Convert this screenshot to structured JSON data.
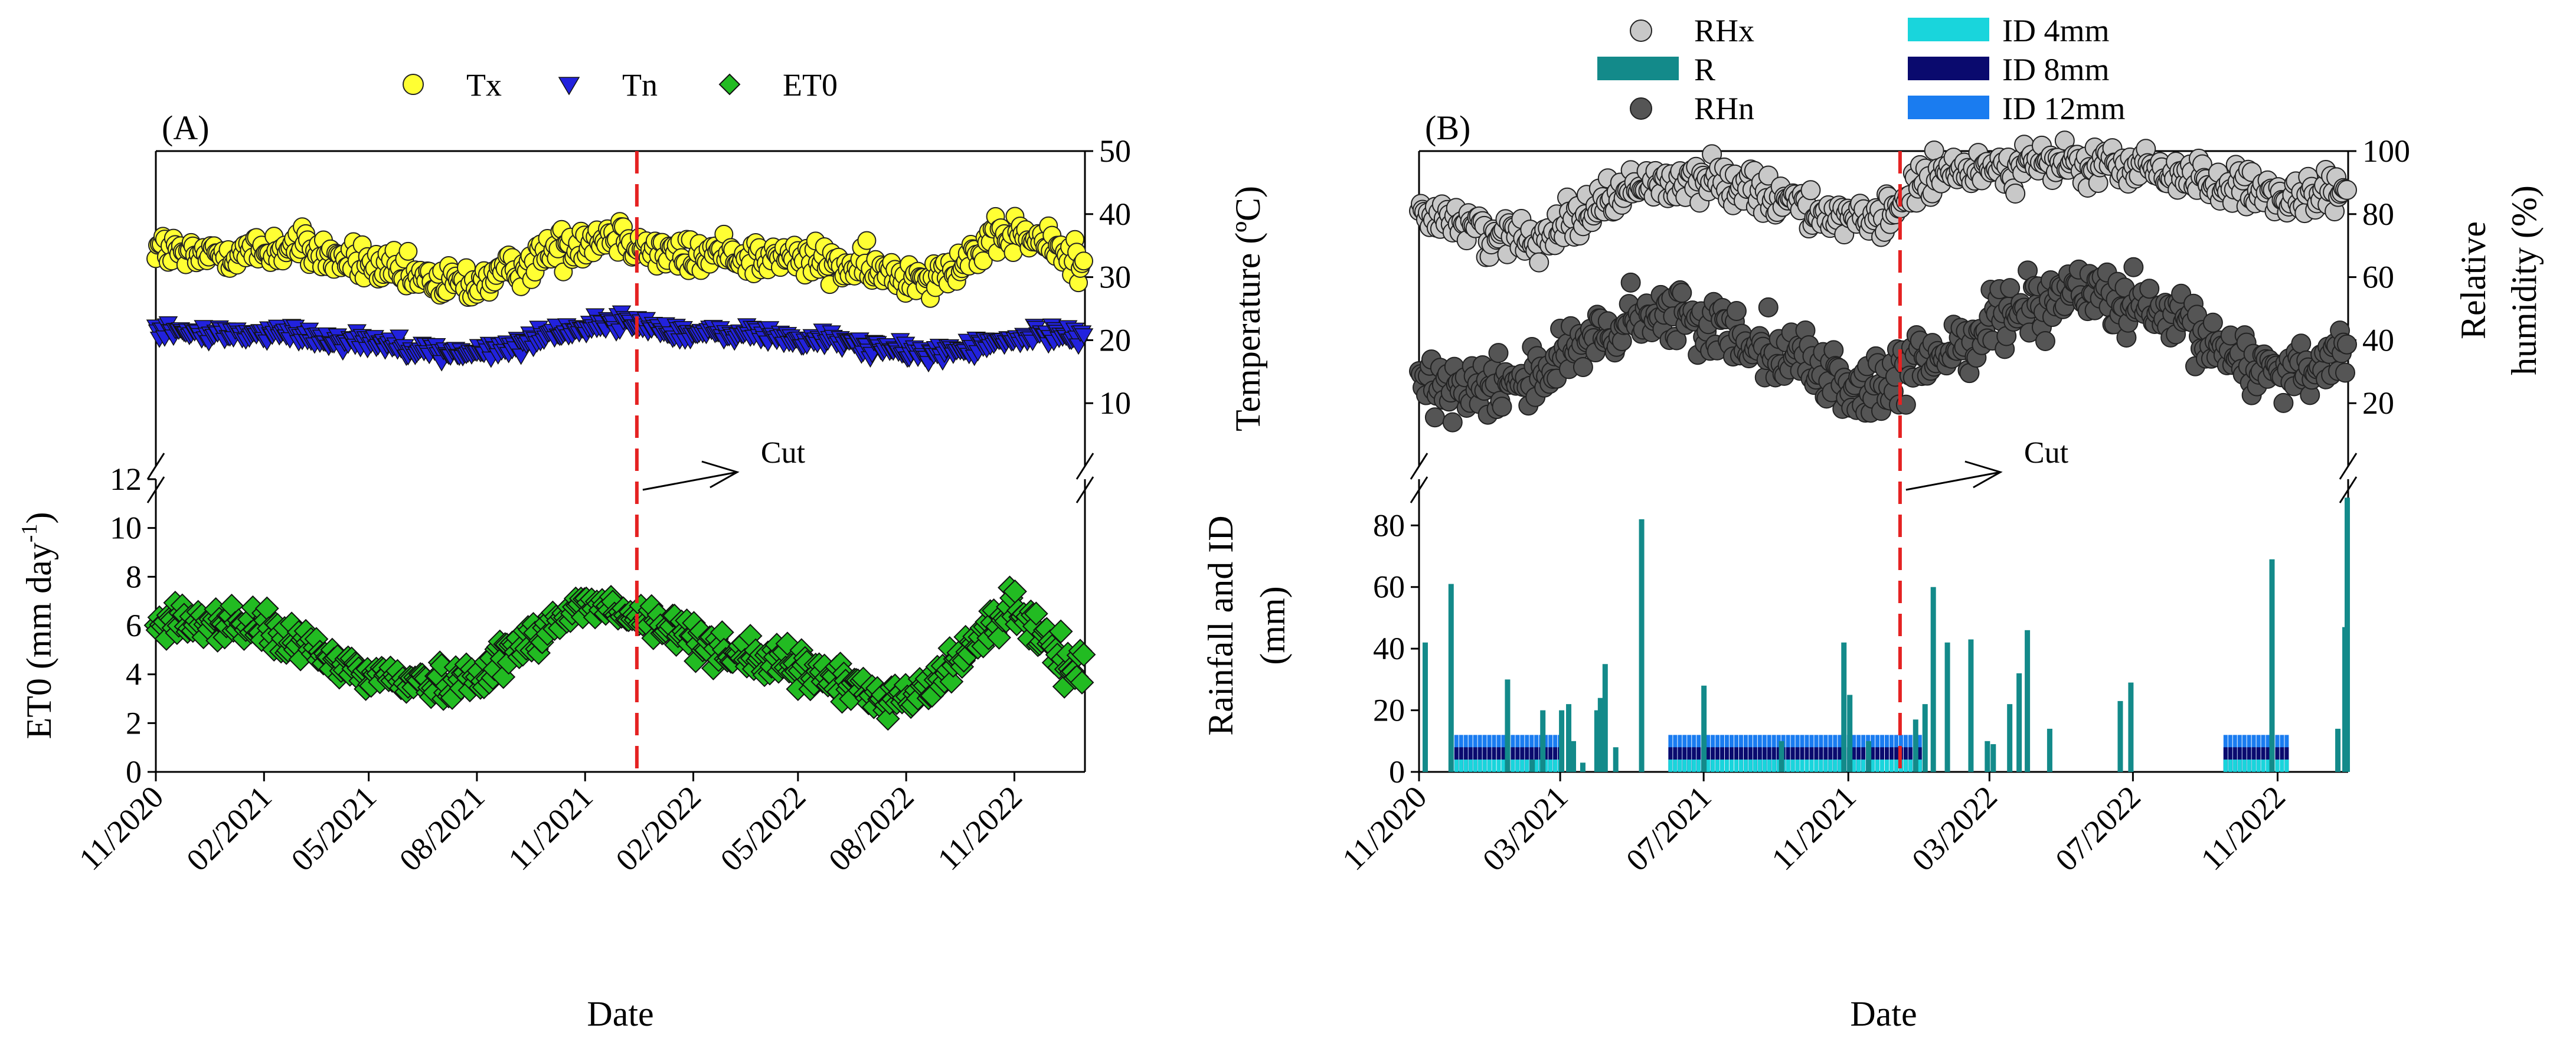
{
  "chart_data": [
    {
      "id": "A",
      "type": "scatter",
      "panel_label": "(A)",
      "xlabel": "Date",
      "x_range": [
        "2020-11-01",
        "2022-12-31"
      ],
      "x_ticks": [
        "11/2020",
        "02/2021",
        "05/2021",
        "08/2021",
        "11/2021",
        "02/2022",
        "05/2022",
        "08/2022",
        "11/2022"
      ],
      "legend": [
        "Tx",
        "Tn",
        "ET0"
      ],
      "cut_label": "Cut",
      "cut_date": "2021-12-15",
      "grid": false,
      "legend_position": "top-center",
      "upper": {
        "ylabel": "Temperature (ºC)",
        "ylim": [
          0,
          50
        ],
        "yticks": [
          "10",
          "20",
          "30",
          "40",
          "50"
        ],
        "axis_side": "right",
        "series": [
          {
            "name": "Tx",
            "color": "#ffff33",
            "marker": "circle",
            "x": [
              "2020-11-01",
              "2020-12-01",
              "2021-01-01",
              "2021-02-01",
              "2021-03-01",
              "2021-04-01",
              "2021-05-01",
              "2021-06-01",
              "2021-07-01",
              "2021-08-01",
              "2021-09-01",
              "2021-10-01",
              "2021-11-01",
              "2021-12-01",
              "2022-01-01",
              "2022-02-01",
              "2022-03-01",
              "2022-04-01",
              "2022-05-01",
              "2022-06-01",
              "2022-07-01",
              "2022-08-01",
              "2022-09-01",
              "2022-10-01",
              "2022-11-01",
              "2022-12-01",
              "2022-12-31"
            ],
            "y": [
              35,
              33,
              34,
              34,
              35,
              33,
              32,
              30,
              29,
              29,
              31,
              34,
              36,
              37,
              34,
              33,
              34,
              33,
              33,
              32,
              31,
              30,
              31,
              34,
              37,
              35,
              32
            ]
          },
          {
            "name": "Tn",
            "color": "#2222dd",
            "marker": "triangle-down",
            "x": [
              "2020-11-01",
              "2020-12-01",
              "2021-01-01",
              "2021-02-01",
              "2021-03-01",
              "2021-04-01",
              "2021-05-01",
              "2021-06-01",
              "2021-07-01",
              "2021-08-01",
              "2021-09-01",
              "2021-10-01",
              "2021-11-01",
              "2021-12-01",
              "2022-01-01",
              "2022-02-01",
              "2022-03-01",
              "2022-04-01",
              "2022-05-01",
              "2022-06-01",
              "2022-07-01",
              "2022-08-01",
              "2022-09-01",
              "2022-10-01",
              "2022-11-01",
              "2022-12-01",
              "2022-12-31"
            ],
            "y": [
              22,
              21,
              21,
              21,
              21,
              20,
              20,
              19,
              18,
              18,
              19,
              21,
              22,
              23,
              22,
              21,
              21,
              21,
              20,
              20,
              19,
              18,
              18,
              19,
              20,
              21,
              21
            ]
          }
        ]
      },
      "lower": {
        "ylabel": "ET0 (mm day-1)",
        "ylim": [
          0,
          12
        ],
        "yticks": [
          "0",
          "2",
          "4",
          "6",
          "8",
          "10",
          "12"
        ],
        "axis_side": "left",
        "series": [
          {
            "name": "ET0",
            "color": "#22bb22",
            "marker": "diamond",
            "x": [
              "2020-11-01",
              "2020-12-01",
              "2021-01-01",
              "2021-02-01",
              "2021-03-01",
              "2021-04-01",
              "2021-05-01",
              "2021-06-01",
              "2021-07-01",
              "2021-08-01",
              "2021-09-01",
              "2021-10-01",
              "2021-11-01",
              "2021-12-01",
              "2022-01-01",
              "2022-02-01",
              "2022-03-01",
              "2022-04-01",
              "2022-05-01",
              "2022-06-01",
              "2022-07-01",
              "2022-08-01",
              "2022-09-01",
              "2022-10-01",
              "2022-11-01",
              "2022-12-01",
              "2022-12-31"
            ],
            "y": [
              6.0,
              6.2,
              6.1,
              5.8,
              5.3,
              4.5,
              4.0,
              3.8,
              3.6,
              4.0,
              5.0,
              6.0,
              6.9,
              6.5,
              6.0,
              5.6,
              5.0,
              4.6,
              4.2,
              3.8,
              3.2,
              3.0,
              3.9,
              5.6,
              6.8,
              5.0,
              4.0
            ]
          }
        ]
      }
    },
    {
      "id": "B",
      "type": "scatter+bar",
      "panel_label": "(B)",
      "xlabel": "Date",
      "x_range": [
        "2020-11-01",
        "2022-12-31"
      ],
      "x_ticks": [
        "11/2020",
        "03/2021",
        "07/2021",
        "11/2021",
        "03/2022",
        "07/2022",
        "11/2022"
      ],
      "legend": [
        "RHx",
        "R",
        "RHn",
        "ID 4mm",
        "ID 8mm",
        "ID 12mm"
      ],
      "cut_label": "Cut",
      "cut_date": "2021-12-15",
      "grid": false,
      "legend_position": "top-center",
      "upper": {
        "ylabel": "Relative humidity (%)",
        "ylim": [
          0,
          100
        ],
        "yticks": [
          "20",
          "40",
          "60",
          "80",
          "100"
        ],
        "axis_side": "right",
        "series": [
          {
            "name": "RHx",
            "color": "#c8c8c8",
            "marker": "circle",
            "x": [
              "2020-11-01",
              "2020-12-01",
              "2021-01-01",
              "2021-02-01",
              "2021-03-01",
              "2021-04-01",
              "2021-05-01",
              "2021-06-01",
              "2021-07-01",
              "2021-08-01",
              "2021-09-01",
              "2021-10-01",
              "2021-11-01",
              "2021-12-01",
              "2022-01-01",
              "2022-02-01",
              "2022-03-01",
              "2022-04-01",
              "2022-05-01",
              "2022-06-01",
              "2022-07-01",
              "2022-08-01",
              "2022-09-01",
              "2022-10-01",
              "2022-11-01",
              "2022-12-01",
              "2022-12-31"
            ],
            "y": [
              82,
              78,
              74,
              72,
              76,
              83,
              88,
              90,
              91,
              90,
              86,
              82,
              77,
              78,
              90,
              93,
              95,
              96,
              96,
              95,
              95,
              93,
              91,
              88,
              84,
              85,
              88
            ]
          },
          {
            "name": "RHn",
            "color": "#555555",
            "marker": "circle",
            "x": [
              "2020-11-01",
              "2020-12-01",
              "2021-01-01",
              "2021-02-01",
              "2021-03-01",
              "2021-04-01",
              "2021-05-01",
              "2021-06-01",
              "2021-07-01",
              "2021-08-01",
              "2021-09-01",
              "2021-10-01",
              "2021-11-01",
              "2021-12-01",
              "2022-01-01",
              "2022-02-01",
              "2022-03-01",
              "2022-04-01",
              "2022-05-01",
              "2022-06-01",
              "2022-07-01",
              "2022-08-01",
              "2022-09-01",
              "2022-10-01",
              "2022-11-01",
              "2022-12-01",
              "2022-12-31"
            ],
            "y": [
              25,
              26,
              27,
              28,
              33,
              40,
              45,
              48,
              45,
              42,
              38,
              32,
              25,
              24,
              32,
              38,
              45,
              52,
              55,
              55,
              50,
              46,
              40,
              34,
              30,
              32,
              38
            ]
          }
        ]
      },
      "lower": {
        "ylabel": "Rainfall and ID (mm)",
        "ylim": [
          0,
          95
        ],
        "yticks": [
          "0",
          "20",
          "40",
          "60",
          "80"
        ],
        "axis_side": "left",
        "series": [
          {
            "name": "R",
            "color": "#138a8a",
            "type": "bar",
            "x": [
              "2020-11-06",
              "2020-11-28",
              "2021-01-15",
              "2021-02-05",
              "2021-02-14",
              "2021-03-02",
              "2021-03-08",
              "2021-03-12",
              "2021-03-20",
              "2021-04-01",
              "2021-04-04",
              "2021-04-08",
              "2021-04-17",
              "2021-05-09",
              "2021-07-01",
              "2021-09-05",
              "2021-10-28",
              "2021-11-02",
              "2021-11-18",
              "2021-12-28",
              "2022-01-05",
              "2022-01-12",
              "2022-01-24",
              "2022-02-13",
              "2022-02-27",
              "2022-03-04",
              "2022-03-18",
              "2022-03-26",
              "2022-04-02",
              "2022-04-21",
              "2022-06-20",
              "2022-06-29",
              "2022-10-27",
              "2022-12-22",
              "2022-12-28",
              "2022-12-30"
            ],
            "y": [
              42,
              61,
              30,
              4,
              20,
              20,
              22,
              10,
              3,
              20,
              24,
              35,
              8,
              82,
              28,
              10,
              42,
              25,
              10,
              17,
              22,
              60,
              42,
              43,
              10,
              9,
              22,
              32,
              46,
              14,
              23,
              29,
              69,
              14,
              47,
              89
            ]
          },
          {
            "name": "ID 4mm",
            "color": "#19d5dc",
            "type": "bar",
            "periods": [
              [
                "2020-12-01",
                "2021-02-27"
              ],
              [
                "2021-06-01",
                "2021-12-31"
              ],
              [
                "2022-09-16",
                "2022-11-07"
              ]
            ],
            "value": 4
          },
          {
            "name": "ID 8mm",
            "color": "#0a0a6e",
            "type": "bar",
            "periods": [
              [
                "2020-12-01",
                "2021-02-27"
              ],
              [
                "2021-06-01",
                "2021-12-31"
              ],
              [
                "2022-09-16",
                "2022-11-07"
              ]
            ],
            "value": 8
          },
          {
            "name": "ID 12mm",
            "color": "#1a7cf0",
            "type": "bar",
            "periods": [
              [
                "2020-12-01",
                "2021-02-27"
              ],
              [
                "2021-06-01",
                "2021-12-31"
              ],
              [
                "2022-09-16",
                "2022-11-07"
              ]
            ],
            "value": 12
          }
        ]
      }
    }
  ]
}
